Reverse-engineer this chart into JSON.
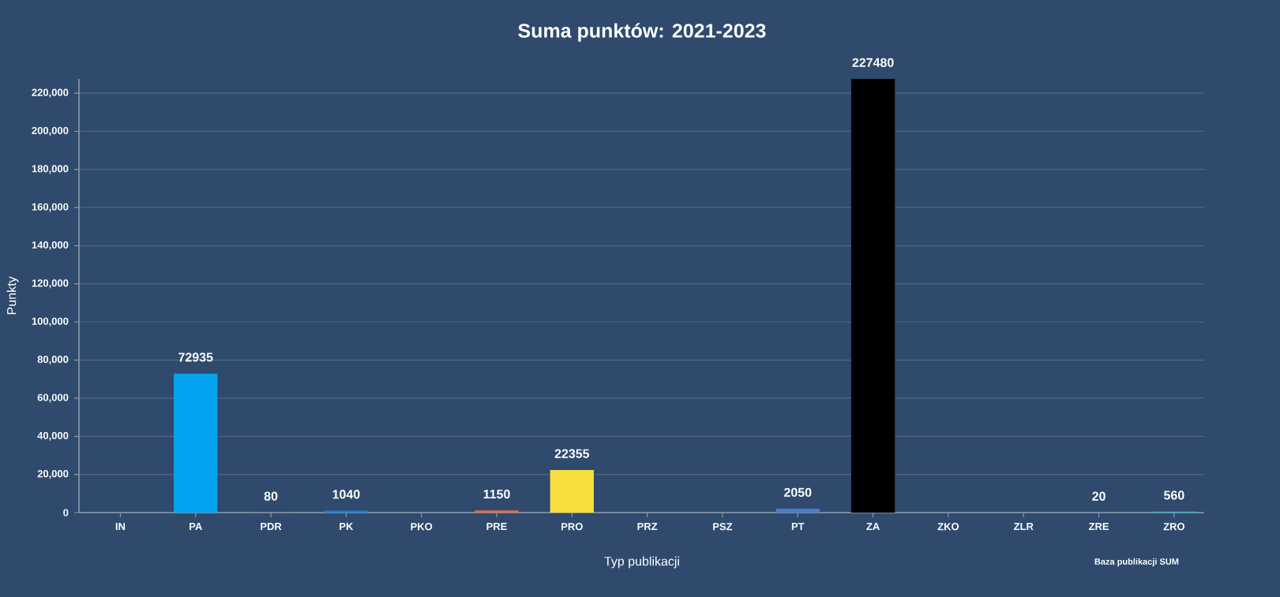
{
  "chart_data": {
    "type": "bar",
    "title": "Suma punktów: 2021-2023",
    "xlabel": "Typ publikacji",
    "ylabel": "Punkty",
    "annotations": [
      "Baza publikacji SUM"
    ],
    "categories": [
      "IN",
      "PA",
      "PDR",
      "PK",
      "PKO",
      "PRE",
      "PRO",
      "PRZ",
      "PSZ",
      "PT",
      "ZA",
      "ZKO",
      "ZLR",
      "ZRE",
      "ZRO"
    ],
    "values": [
      null,
      72935,
      80,
      1040,
      null,
      1150,
      22355,
      null,
      null,
      2050,
      227480,
      null,
      null,
      20,
      560
    ],
    "colors": [
      null,
      "#03a4ef",
      "#8a7a60",
      "#1a7fd4",
      null,
      "#e8694a",
      "#f7df3f",
      null,
      null,
      "#4a7cc9",
      "#000000",
      null,
      null,
      "#9a9a9a",
      "#3bb8c9"
    ],
    "ylim": [
      0,
      227500
    ],
    "yticks": [
      {
        "value": 0,
        "label": "0"
      },
      {
        "value": 20000,
        "label": "20,000"
      },
      {
        "value": 40000,
        "label": "40,000"
      },
      {
        "value": 60000,
        "label": "60,000"
      },
      {
        "value": 80000,
        "label": "80,000"
      },
      {
        "value": 100000,
        "label": "100,000"
      },
      {
        "value": 120000,
        "label": "120,000"
      },
      {
        "value": 140000,
        "label": "140,000"
      },
      {
        "value": 160000,
        "label": "160,000"
      },
      {
        "value": 180000,
        "label": "180,000"
      },
      {
        "value": 200000,
        "label": "200,000"
      },
      {
        "value": 220000,
        "label": "220,000"
      }
    ],
    "grid": "y",
    "data_labels": true
  }
}
